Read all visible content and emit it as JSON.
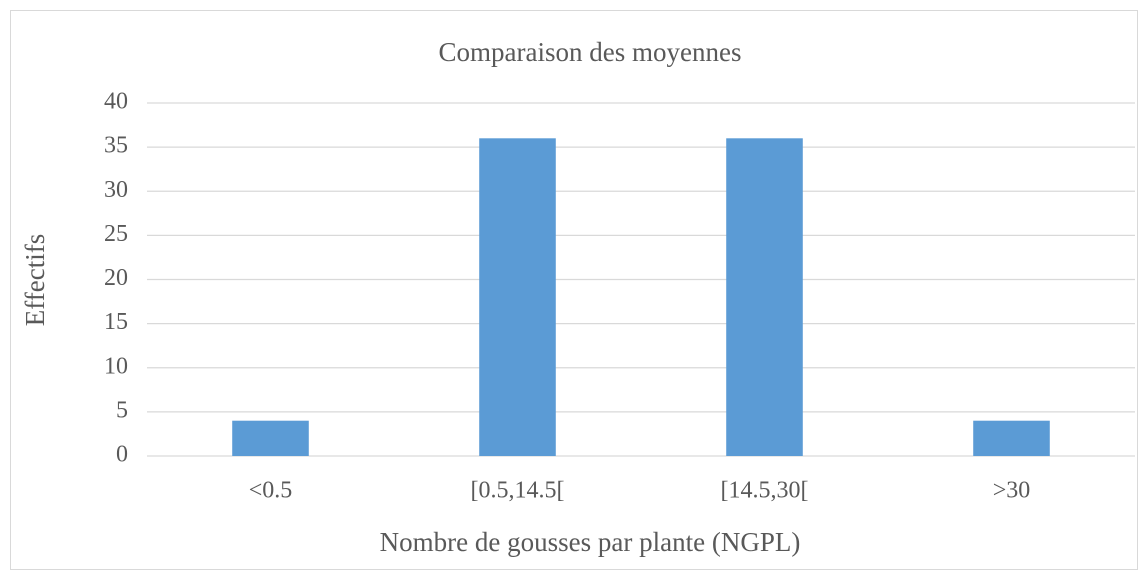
{
  "chart_data": {
    "type": "bar",
    "title": "Comparaison des moyennes",
    "x_label": "Nombre de gousses par plante (NGPL)",
    "y_label": "Effectifs",
    "categories": [
      "<0.5",
      "[0.5,14.5[",
      "[14.5,30[",
      ">30"
    ],
    "values": [
      4,
      36,
      36,
      4
    ],
    "color": "#5b9bd5",
    "ylim": [
      0,
      40
    ],
    "yticks": [
      0,
      5,
      10,
      15,
      20,
      25,
      30,
      35,
      40
    ],
    "grid": true
  }
}
